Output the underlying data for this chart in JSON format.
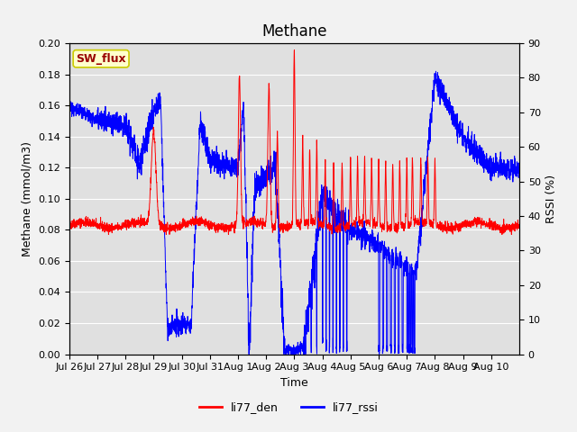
{
  "title": "Methane",
  "ylabel_left": "Methane (mmol/m3)",
  "ylabel_right": "RSSI (%)",
  "xlabel": "Time",
  "ylim_left": [
    0.0,
    0.2
  ],
  "ylim_right": [
    0,
    90
  ],
  "yticks_left": [
    0.0,
    0.02,
    0.04,
    0.06,
    0.08,
    0.1,
    0.12,
    0.14,
    0.16,
    0.18,
    0.2
  ],
  "yticks_right": [
    0,
    10,
    20,
    30,
    40,
    50,
    60,
    70,
    80,
    90
  ],
  "background_color": "#f2f2f2",
  "plot_bg_color": "#e0e0e0",
  "sw_flux_label": "SW_flux",
  "sw_flux_bg": "#ffffcc",
  "sw_flux_border": "#cccc00",
  "sw_flux_text_color": "#990000",
  "legend_entries": [
    "li77_den",
    "li77_rssi"
  ],
  "legend_colors": [
    "red",
    "blue"
  ],
  "den_color": "red",
  "rssi_color": "blue",
  "grid_color": "white",
  "title_fontsize": 12,
  "axis_label_fontsize": 9,
  "tick_label_fontsize": 8,
  "x_tick_labels": [
    "Jul 26",
    "Jul 27",
    "Jul 28",
    "Jul 29",
    "Jul 30",
    "Jul 31",
    "Aug 1",
    "Aug 2",
    "Aug 3",
    "Aug 4",
    "Aug 5",
    "Aug 6",
    "Aug 7",
    "Aug 8",
    "Aug 9",
    "Aug 10"
  ],
  "num_points": 3000
}
